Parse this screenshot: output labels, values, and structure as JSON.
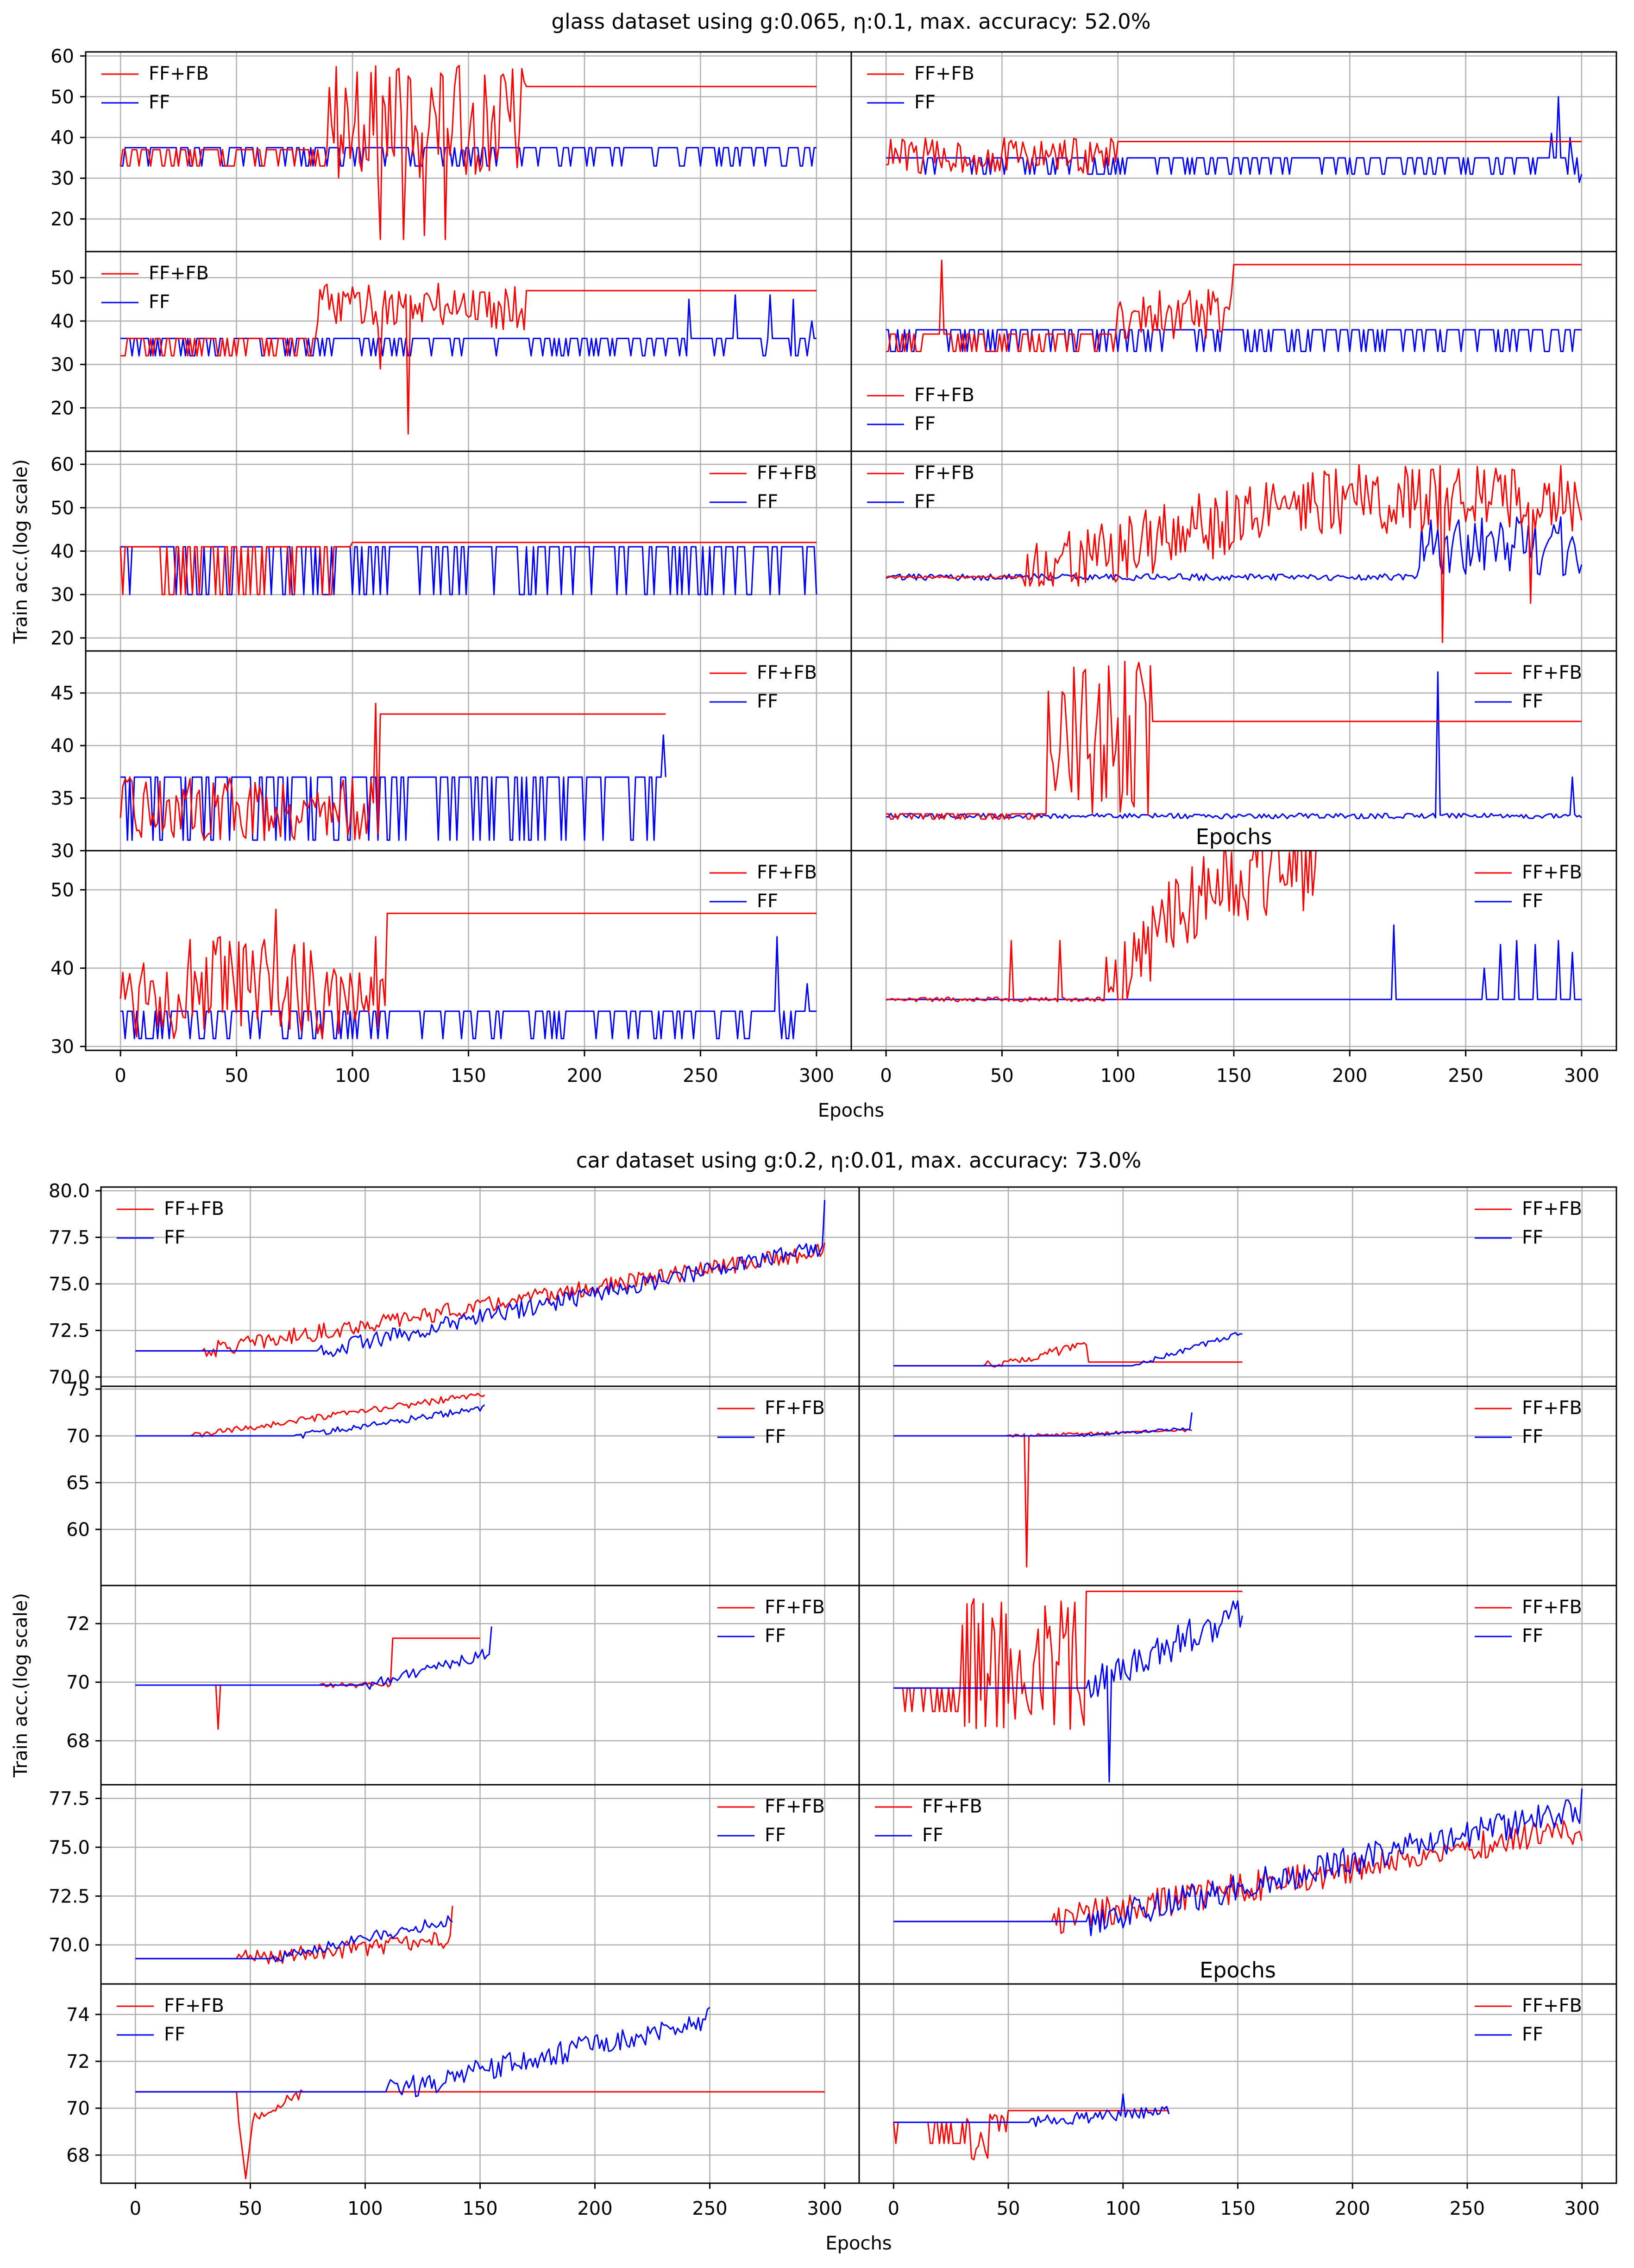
{
  "figures": [
    {
      "id": "glass",
      "title": "glass dataset using g:0.065, η:0.1, max. accuracy: 52.0%",
      "xlabel": "Epochs",
      "ylabel": "Train acc.(log scale)",
      "x_ticks": [
        "0",
        "50",
        "100",
        "150",
        "200",
        "250",
        "300"
      ],
      "extra_labels": [
        {
          "row": 3,
          "col": 1,
          "text": "Epochs"
        }
      ]
    },
    {
      "id": "car",
      "title": "car dataset using g:0.2, η:0.01, max. accuracy: 73.0%",
      "xlabel": "Epochs",
      "ylabel": "Train acc.(log scale)",
      "x_ticks": [
        "0",
        "50",
        "100",
        "150",
        "200",
        "250",
        "300"
      ],
      "extra_labels": [
        {
          "row": 3,
          "col": 1,
          "text": "Epochs"
        }
      ]
    }
  ],
  "legend": {
    "ffb_label": "FF+FB",
    "ff_label": "FF"
  },
  "colors": {
    "ffb": "#ff0000",
    "ff": "#0000ff",
    "grid": "#b0b0b0"
  },
  "chart_data": [
    {
      "type": "line",
      "figure": "glass",
      "title": "glass dataset using g:0.065, η:0.1, max. accuracy: 52.0%",
      "xlabel": "Epochs",
      "ylabel": "Train acc.(log scale)",
      "xlim": [
        -15,
        315
      ],
      "row_ylims": [
        [
          12,
          61
        ],
        [
          10,
          56
        ],
        [
          17,
          63
        ],
        [
          30,
          49
        ],
        [
          29.5,
          55
        ]
      ],
      "row_yticks": [
        [
          20,
          30,
          40,
          50,
          60
        ],
        [
          20,
          30,
          40,
          50
        ],
        [
          20,
          30,
          40,
          50,
          60
        ],
        [
          30,
          35,
          40,
          45
        ],
        [
          30,
          40,
          50
        ]
      ],
      "panels": [
        {
          "row": 0,
          "col": 0,
          "legend_pos": "top-left",
          "series": [
            {
              "name": "FF+FB",
              "kind": "osc_then_flat",
              "x_end": 300,
              "base": 37,
              "alt": 33,
              "start_x": 90,
              "end_x": 175,
              "range": [
                30,
                58
              ],
              "final": 52.5,
              "spikes": [
                [
                  112,
                  15
                ],
                [
                  122,
                  15
                ],
                [
                  131,
                  16
                ],
                [
                  140,
                  15
                ]
              ]
            },
            {
              "name": "FF",
              "kind": "toggle",
              "x_end": 300,
              "base": 37.5,
              "alt": 33
            }
          ]
        },
        {
          "row": 0,
          "col": 1,
          "legend_pos": "top-left",
          "series": [
            {
              "name": "FF+FB",
              "kind": "osc_then_flat",
              "x_end": 300,
              "base": 35,
              "alt": 31,
              "start_x": 0,
              "end_x": 100,
              "range": [
                31,
                40
              ],
              "final": 39
            },
            {
              "name": "FF",
              "kind": "toggle",
              "x_end": 300,
              "base": 35,
              "alt": 31,
              "spikes": [
                [
                  290,
                  50
                ],
                [
                  287,
                  41
                ],
                [
                  295,
                  40
                ],
                [
                  299,
                  29
                ]
              ]
            }
          ]
        },
        {
          "row": 1,
          "col": 0,
          "legend_pos": "top-left",
          "series": [
            {
              "name": "FF+FB",
              "kind": "osc_then_flat",
              "x_end": 300,
              "base": 36,
              "alt": 32,
              "start_x": 85,
              "end_x": 175,
              "range": [
                38,
                49
              ],
              "final": 47,
              "spikes": [
                [
                  112,
                  29
                ],
                [
                  124,
                  14
                ]
              ]
            },
            {
              "name": "FF",
              "kind": "toggle",
              "x_end": 300,
              "base": 36,
              "alt": 32,
              "spikes": [
                [
                  245,
                  45
                ],
                [
                  265,
                  46
                ],
                [
                  280,
                  46
                ],
                [
                  290,
                  45
                ],
                [
                  298,
                  40
                ]
              ]
            }
          ]
        },
        {
          "row": 1,
          "col": 1,
          "legend_pos": "lower-left",
          "series": [
            {
              "name": "FF+FB",
              "kind": "osc_then_flat",
              "x_end": 300,
              "base": 37,
              "alt": 33,
              "start_x": 100,
              "end_x": 150,
              "range": [
                36,
                48
              ],
              "final": 53,
              "spikes": [
                [
                  24,
                  54
                ]
              ]
            },
            {
              "name": "FF",
              "kind": "toggle",
              "x_end": 300,
              "base": 38,
              "alt": 33
            }
          ]
        },
        {
          "row": 2,
          "col": 0,
          "legend_pos": "top-right",
          "series": [
            {
              "name": "FF+FB",
              "kind": "toggle",
              "x_end": 300,
              "base": 41,
              "alt": 30,
              "flat_from": 100,
              "final": 42
            },
            {
              "name": "FF",
              "kind": "toggle",
              "x_end": 300,
              "base": 41,
              "alt": 30
            }
          ]
        },
        {
          "row": 2,
          "col": 1,
          "legend_pos": "top-left",
          "series": [
            {
              "name": "FF+FB",
              "kind": "noisy",
              "x_end": 300,
              "start_x": 60,
              "base": 34,
              "range": [
                32,
                61
              ],
              "trend_to": 52,
              "spikes": [
                [
                  240,
                  19
                ],
                [
                  278,
                  28
                ]
              ]
            },
            {
              "name": "FF",
              "kind": "noisy_low",
              "x_end": 300,
              "base": 34,
              "spread": 1.5,
              "late_rise": [
                230,
                48
              ]
            }
          ]
        },
        {
          "row": 3,
          "col": 0,
          "legend_pos": "top-right",
          "series": [
            {
              "name": "FF+FB",
              "kind": "osc_then_flat",
              "x_end": 235,
              "base": 37,
              "alt": 31,
              "start_x": 0,
              "end_x": 112,
              "range": [
                31,
                37
              ],
              "final": 43,
              "spikes": [
                [
                  110,
                  44
                ]
              ]
            },
            {
              "name": "FF",
              "kind": "toggle",
              "x_end": 235,
              "base": 37,
              "alt": 31,
              "spikes": [
                [
                  234,
                  41
                ]
              ]
            }
          ]
        },
        {
          "row": 3,
          "col": 1,
          "legend_pos": "top-right",
          "series": [
            {
              "name": "FF+FB",
              "kind": "osc_then_flat",
              "x_end": 300,
              "base": 33.5,
              "alt": 33,
              "start_x": 70,
              "end_x": 115,
              "range": [
                33,
                48
              ],
              "final": 42.3,
              "spikes": [
                [
                  75,
                  39.5
                ],
                [
                  103,
                  48
                ],
                [
                  108,
                  47
                ]
              ]
            },
            {
              "name": "FF",
              "kind": "noisy_low",
              "x_end": 300,
              "base": 33.3,
              "spread": 0.5,
              "spikes": [
                [
                  238,
                  47
                ],
                [
                  296,
                  37
                ]
              ]
            }
          ]
        },
        {
          "row": 4,
          "col": 0,
          "legend_pos": "top-right",
          "series": [
            {
              "name": "FF+FB",
              "kind": "osc_then_flat",
              "x_end": 300,
              "base": 34,
              "alt": 31,
              "start_x": 0,
              "end_x": 115,
              "range": [
                31,
                44
              ],
              "final": 47,
              "spikes": [
                [
                  67,
                  47.5
                ],
                [
                  110,
                  44
                ]
              ]
            },
            {
              "name": "FF",
              "kind": "toggle",
              "x_end": 300,
              "base": 34.5,
              "alt": 31,
              "spikes": [
                [
                  283,
                  44
                ],
                [
                  296,
                  38
                ]
              ]
            }
          ]
        },
        {
          "row": 4,
          "col": 1,
          "legend_pos": "top-right",
          "series": [
            {
              "name": "FF+FB",
              "kind": "noisy",
              "x_end": 186,
              "start_x": 95,
              "base": 36,
              "range": [
                36,
                58
              ],
              "trend_to": 52,
              "final": 58,
              "spikes": [
                [
                  54,
                  43.5
                ],
                [
                  75,
                  43.5
                ]
              ]
            },
            {
              "name": "FF",
              "kind": "toggle_sparse",
              "x_end": 300,
              "base": 36,
              "spikes": [
                [
                  219,
                  45.5
                ],
                [
                  258,
                  40
                ],
                [
                  265,
                  43
                ],
                [
                  272,
                  43.5
                ],
                [
                  280,
                  43
                ],
                [
                  290,
                  43.5
                ],
                [
                  296,
                  42
                ]
              ]
            }
          ]
        }
      ]
    },
    {
      "type": "line",
      "figure": "car",
      "title": "car dataset using g:0.2, η:0.01, max. accuracy: 73.0%",
      "xlabel": "Epochs",
      "ylabel": "Train acc.(log scale)",
      "xlim": [
        -15,
        315
      ],
      "row_ylims": [
        [
          69.5,
          80.2
        ],
        [
          54,
          75.3
        ],
        [
          66.5,
          73.3
        ],
        [
          68,
          78.2
        ],
        [
          66.8,
          75.3
        ]
      ],
      "row_yticks": [
        [
          70.0,
          72.5,
          75.0,
          77.5,
          80.0
        ],
        [
          60,
          65,
          70,
          75
        ],
        [
          68,
          70,
          72
        ],
        [
          70.0,
          72.5,
          75.0,
          77.5
        ],
        [
          68,
          70,
          72,
          74
        ]
      ],
      "panels": [
        {
          "row": 0,
          "col": 0,
          "legend_pos": "top-left",
          "series": [
            {
              "name": "FF+FB",
              "kind": "rising",
              "x_end": 300,
              "start_x": 30,
              "base": 71.4,
              "to": 76.8,
              "noise": 0.9
            },
            {
              "name": "FF",
              "kind": "rising",
              "x_end": 300,
              "start_x": 80,
              "base": 71.4,
              "to": 77.0,
              "noise": 0.9,
              "final": 79.5
            }
          ]
        },
        {
          "row": 0,
          "col": 1,
          "legend_pos": "top-right",
          "series": [
            {
              "name": "FF+FB",
              "kind": "bump_flat",
              "x_end": 152,
              "start_x": 40,
              "base": 70.6,
              "peak": 71.7,
              "flat_x": 85,
              "final": 70.8
            },
            {
              "name": "FF",
              "kind": "rising",
              "x_end": 152,
              "start_x": 105,
              "base": 70.6,
              "to": 72.4,
              "noise": 0.3
            }
          ]
        },
        {
          "row": 1,
          "col": 0,
          "legend_pos": "top-right",
          "series": [
            {
              "name": "FF+FB",
              "kind": "rising",
              "x_end": 152,
              "start_x": 25,
              "base": 70,
              "to": 74.5,
              "noise": 0.7
            },
            {
              "name": "FF",
              "kind": "rising",
              "x_end": 152,
              "start_x": 70,
              "base": 70,
              "to": 73,
              "noise": 0.7
            }
          ]
        },
        {
          "row": 1,
          "col": 1,
          "legend_pos": "top-right",
          "series": [
            {
              "name": "FF+FB",
              "kind": "rising",
              "x_end": 130,
              "start_x": 50,
              "base": 70,
              "to": 70.6,
              "noise": 0.3,
              "spikes": [
                [
                  55,
                  70
                ],
                [
                  58,
                  56
                ]
              ]
            },
            {
              "name": "FF",
              "kind": "rising",
              "x_end": 130,
              "start_x": 80,
              "base": 70,
              "to": 70.8,
              "noise": 0.3,
              "final": 72.5
            }
          ]
        },
        {
          "row": 2,
          "col": 0,
          "legend_pos": "top-right",
          "series": [
            {
              "name": "FF+FB",
              "kind": "step",
              "x_end": 150,
              "base": 69.9,
              "step_x": 112,
              "final": 71.5,
              "spikes": [
                [
                  36,
                  68.4
                ]
              ]
            },
            {
              "name": "FF",
              "kind": "rising",
              "x_end": 155,
              "start_x": 100,
              "base": 69.9,
              "to": 71.0,
              "noise": 0.4,
              "final": 71.9
            }
          ]
        },
        {
          "row": 2,
          "col": 1,
          "legend_pos": "top-right",
          "series": [
            {
              "name": "FF+FB",
              "kind": "osc_then_flat",
              "x_end": 152,
              "base": 69.8,
              "alt": 69,
              "start_x": 30,
              "end_x": 84,
              "range": [
                68.2,
                72.9
              ],
              "final": 73.1
            },
            {
              "name": "FF",
              "kind": "rising",
              "x_end": 152,
              "start_x": 85,
              "base": 69.8,
              "to": 72.5,
              "noise": 1.2,
              "spikes": [
                [
                  94,
                  66.6
                ]
              ]
            }
          ]
        },
        {
          "row": 3,
          "col": 0,
          "legend_pos": "top-right",
          "series": [
            {
              "name": "FF+FB",
              "kind": "rising",
              "x_end": 138,
              "start_x": 45,
              "base": 69.3,
              "to": 70.3,
              "noise": 0.9,
              "spikes": [
                [
                  138,
                  72
                ]
              ]
            },
            {
              "name": "FF",
              "kind": "rising",
              "x_end": 138,
              "start_x": 60,
              "base": 69.3,
              "to": 71.3,
              "noise": 0.6
            }
          ]
        },
        {
          "row": 3,
          "col": 1,
          "legend_pos": "top-left",
          "series": [
            {
              "name": "FF+FB",
              "kind": "rising",
              "x_end": 300,
              "start_x": 70,
              "base": 71.2,
              "to": 76.0,
              "noise": 1.6
            },
            {
              "name": "FF",
              "kind": "rising",
              "x_end": 300,
              "start_x": 85,
              "base": 71.2,
              "to": 77.0,
              "noise": 1.5,
              "final": 78
            }
          ]
        },
        {
          "row": 4,
          "col": 0,
          "legend_pos": "top-left",
          "series": [
            {
              "name": "FF+FB",
              "kind": "dip_flat",
              "x_end": 300,
              "base": 70.7,
              "dip_x": 48,
              "dip_to": 67.0
            },
            {
              "name": "FF",
              "kind": "rising",
              "x_end": 250,
              "start_x": 110,
              "base": 70.7,
              "to": 73.8,
              "noise": 1.0,
              "final": 74.3
            }
          ]
        },
        {
          "row": 4,
          "col": 1,
          "legend_pos": "top-right",
          "series": [
            {
              "name": "FF+FB",
              "kind": "osc_then_flat",
              "x_end": 120,
              "base": 69.4,
              "alt": 68.5,
              "start_x": 32,
              "end_x": 50,
              "range": [
                67.8,
                69.9
              ],
              "final": 69.9
            },
            {
              "name": "FF",
              "kind": "rising",
              "x_end": 120,
              "start_x": 60,
              "base": 69.4,
              "to": 69.9,
              "noise": 0.5,
              "spikes": [
                [
                  100,
                  70.6
                ]
              ]
            }
          ]
        }
      ]
    }
  ]
}
